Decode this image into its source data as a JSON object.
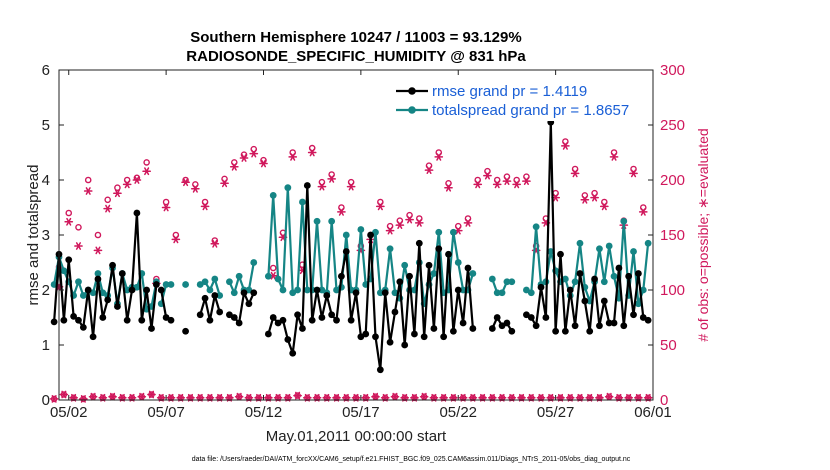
{
  "chart_data": {
    "type": "line",
    "title": "Southern Hemisphere 10247 / 11003 = 93.129%",
    "subtitle": "RADIOSONDE_SPECIFIC_HUMIDITY @ 831 hPa",
    "xlabel": "May.01,2011 00:00:00 start",
    "ylabel": "rmse and totalspread",
    "ylabel_right": "# of obs: o=possible; ∗=evaluated",
    "footer": "data file: /Users/raeder/DAI/ATM_forcXX/CAM6_setup/f.e21.FHIST_BGC.f09_025.CAM6assim.011/Diags_NTrS_2011-05/obs_diag_output.nc",
    "x_unit": "days since May.01,2011 00:00",
    "xlim": [
      0.5,
      31.0
    ],
    "ylim": [
      0,
      6
    ],
    "ylim_right": [
      0,
      300
    ],
    "xticks": [
      1,
      6,
      11,
      16,
      21,
      26,
      31
    ],
    "xtick_labels": [
      "05/02",
      "05/07",
      "05/12",
      "05/17",
      "05/22",
      "05/27",
      "06/01"
    ],
    "yticks": [
      0,
      1,
      2,
      3,
      4,
      5,
      6
    ],
    "yticks_right": [
      0,
      50,
      100,
      150,
      200,
      250,
      300
    ],
    "grid": false,
    "legend_position": "top-right",
    "colors": {
      "rmse": "#000000",
      "spread": "#158585",
      "counts": "#d0185c"
    },
    "series": [
      {
        "name": "rmse grand pr = 1.4119",
        "axis": "left",
        "segments": [
          {
            "x": [
              0.25,
              0.5,
              0.75,
              1.0,
              1.25,
              1.5,
              1.75,
              2.0,
              2.25,
              2.5,
              2.75,
              3.0,
              3.25,
              3.5,
              3.75,
              4.0,
              4.25,
              4.5,
              4.75,
              5.0,
              5.25,
              5.5
            ],
            "y": [
              1.42,
              2.65,
              1.45,
              2.55,
              1.52,
              1.45,
              1.32,
              2.0,
              1.15,
              2.2,
              1.5,
              1.82,
              2.45,
              1.7,
              2.3,
              1.45,
              2.0,
              3.4,
              1.45,
              2.0,
              1.3,
              2.1
            ]
          },
          {
            "x": [
              5.75,
              6.0,
              6.25
            ],
            "y": [
              2.0,
              1.5,
              1.45
            ]
          },
          {
            "x": [
              7.0
            ],
            "y": [
              1.25
            ]
          },
          {
            "x": [
              7.75,
              8.0,
              8.25,
              8.5,
              8.75
            ],
            "y": [
              1.55,
              1.85,
              1.45,
              1.9,
              1.6
            ]
          },
          {
            "x": [
              9.25,
              9.5,
              9.75,
              10.0,
              10.25,
              10.5
            ],
            "y": [
              1.55,
              1.5,
              1.4,
              1.95,
              1.75,
              1.95
            ]
          },
          {
            "x": [
              11.25,
              11.5,
              11.75,
              12.0,
              12.25,
              12.5,
              12.75,
              13.0,
              13.25,
              13.5,
              13.75,
              14.0,
              14.25,
              14.5,
              14.75,
              15.0,
              15.25,
              15.5,
              15.75,
              16.0,
              16.25,
              16.5,
              16.75,
              17.0,
              17.25,
              17.5,
              17.75,
              18.0,
              18.25,
              18.5,
              18.75,
              19.0,
              19.25,
              19.5,
              19.75,
              20.0,
              20.25,
              20.5,
              20.75,
              21.0,
              21.25,
              21.5,
              21.75
            ],
            "y": [
              1.2,
              1.5,
              1.4,
              1.45,
              1.1,
              0.85,
              1.55,
              1.3,
              3.9,
              1.45,
              2.0,
              1.5,
              1.9,
              1.55,
              1.45,
              2.25,
              2.7,
              1.45,
              1.95,
              1.15,
              1.2,
              3.0,
              1.15,
              0.55,
              1.95,
              1.05,
              1.6,
              2.15,
              1.0,
              2.25,
              1.2,
              2.85,
              1.15,
              2.45,
              1.3,
              2.75,
              1.15,
              2.65,
              1.25,
              2.0,
              1.4,
              2.4,
              1.3
            ]
          },
          {
            "x": [
              22.75,
              23.0,
              23.25,
              23.5,
              23.75
            ],
            "y": [
              1.3,
              1.5,
              1.35,
              1.4,
              1.25
            ]
          },
          {
            "x": [
              24.5,
              24.75,
              25.0,
              25.25,
              25.5,
              25.75,
              26.0,
              26.25,
              26.5,
              26.75,
              27.0,
              27.25,
              27.5,
              27.75,
              28.0,
              28.25,
              28.5,
              28.75,
              29.0,
              29.25,
              29.5,
              29.75,
              30.0,
              30.25,
              30.5,
              30.75
            ],
            "y": [
              1.55,
              1.5,
              1.35,
              2.05,
              1.5,
              5.05,
              1.25,
              2.65,
              1.25,
              2.0,
              1.35,
              2.3,
              1.8,
              1.25,
              2.2,
              1.35,
              1.8,
              1.4,
              1.4,
              2.4,
              1.35,
              2.25,
              1.55,
              2.3,
              1.5,
              1.45
            ]
          }
        ]
      },
      {
        "name": "totalspread grand pr = 1.8657",
        "axis": "left",
        "segments": [
          {
            "x": [
              0.25,
              0.5,
              0.75,
              1.0,
              1.25,
              1.5,
              1.75,
              2.0,
              2.25,
              2.5,
              2.75,
              3.0,
              3.25,
              3.5,
              3.75,
              4.0,
              4.25,
              4.5,
              4.75,
              5.0,
              5.25,
              5.5
            ],
            "y": [
              2.1,
              2.6,
              2.35,
              2.15,
              1.9,
              2.15,
              1.9,
              2.0,
              1.95,
              2.3,
              1.95,
              1.9,
              2.4,
              1.75,
              2.3,
              2.0,
              2.05,
              2.05,
              2.3,
              1.65,
              1.7,
              2.15
            ]
          },
          {
            "x": [
              5.75,
              6.0,
              6.25
            ],
            "y": [
              1.75,
              2.1,
              2.1
            ]
          },
          {
            "x": [
              7.0
            ],
            "y": [
              2.1
            ]
          },
          {
            "x": [
              7.75,
              8.0,
              8.25,
              8.5,
              8.75
            ],
            "y": [
              2.1,
              2.15,
              2.0,
              2.2,
              1.9
            ]
          },
          {
            "x": [
              9.25,
              9.5,
              9.75,
              10.0,
              10.25,
              10.5
            ],
            "y": [
              2.15,
              1.95,
              2.25,
              2.0,
              2.0,
              2.5
            ]
          },
          {
            "x": [
              11.25,
              11.5,
              11.75,
              12.0,
              12.25,
              12.5,
              12.75,
              13.0,
              13.25,
              13.5,
              13.75,
              14.0,
              14.25,
              14.5,
              14.75,
              15.0,
              15.25,
              15.5,
              15.75,
              16.0,
              16.25,
              16.5,
              16.75,
              17.0,
              17.25,
              17.5,
              17.75,
              18.0,
              18.25,
              18.5,
              18.75,
              19.0,
              19.25,
              19.5,
              19.75,
              20.0,
              20.25,
              20.5,
              20.75,
              21.0,
              21.25,
              21.5,
              21.75
            ],
            "y": [
              2.25,
              3.72,
              2.2,
              2.0,
              3.86,
              1.95,
              2.0,
              3.6,
              2.0,
              2.0,
              3.25,
              2.0,
              1.95,
              3.25,
              2.0,
              2.05,
              3.0,
              2.0,
              2.0,
              3.1,
              2.1,
              2.2,
              3.05,
              1.95,
              2.0,
              2.75,
              1.95,
              1.85,
              2.45,
              2.0,
              2.0,
              2.5,
              1.75,
              2.1,
              2.3,
              3.05,
              1.95,
              2.0,
              3.05,
              2.5,
              2.0,
              2.0,
              2.3
            ]
          },
          {
            "x": [
              22.75,
              23.0,
              23.25,
              23.5,
              23.75
            ],
            "y": [
              2.2,
              1.95,
              1.95,
              2.15,
              2.15
            ]
          },
          {
            "x": [
              24.5,
              24.75,
              25.0,
              25.25,
              25.5,
              25.75,
              26.0,
              26.25,
              26.5,
              26.75,
              27.0,
              27.25,
              27.5,
              27.75,
              28.0,
              28.25,
              28.5,
              28.75,
              29.0,
              29.25,
              29.5,
              29.75,
              30.0,
              30.25,
              30.5,
              30.75
            ],
            "y": [
              2.0,
              1.95,
              3.15,
              2.1,
              2.15,
              2.7,
              2.35,
              2.15,
              2.2,
              1.9,
              2.15,
              2.85,
              2.05,
              1.8,
              2.15,
              2.75,
              2.15,
              2.8,
              2.25,
              1.85,
              3.25,
              1.9,
              2.7,
              1.75,
              2.0,
              2.85
            ]
          }
        ]
      }
    ],
    "obs_counts": {
      "axis": "right",
      "x": [
        0.25,
        0.5,
        0.75,
        1.0,
        1.25,
        1.5,
        1.75,
        2.0,
        2.25,
        2.5,
        2.75,
        3.0,
        3.25,
        3.5,
        3.75,
        4.0,
        4.25,
        4.5,
        4.75,
        5.0,
        5.25,
        5.5,
        5.75,
        6.0,
        6.25,
        6.5,
        6.75,
        7.0,
        7.25,
        7.5,
        7.75,
        8.0,
        8.25,
        8.5,
        8.75,
        9.0,
        9.25,
        9.5,
        9.75,
        10.0,
        10.25,
        10.5,
        10.75,
        11.0,
        11.25,
        11.5,
        11.75,
        12.0,
        12.25,
        12.5,
        12.75,
        13.0,
        13.25,
        13.5,
        13.75,
        14.0,
        14.25,
        14.5,
        14.75,
        15.0,
        15.25,
        15.5,
        15.75,
        16.0,
        16.25,
        16.5,
        16.75,
        17.0,
        17.25,
        17.5,
        17.75,
        18.0,
        18.25,
        18.5,
        18.75,
        19.0,
        19.25,
        19.5,
        19.75,
        20.0,
        20.25,
        20.5,
        20.75,
        21.0,
        21.25,
        21.5,
        21.75,
        22.0,
        22.25,
        22.5,
        22.75,
        23.0,
        23.25,
        23.5,
        23.75,
        24.0,
        24.25,
        24.5,
        24.75,
        25.0,
        25.25,
        25.5,
        25.75,
        26.0,
        26.25,
        26.5,
        26.75,
        27.0,
        27.25,
        27.5,
        27.75,
        28.0,
        28.25,
        28.5,
        28.75,
        29.0,
        29.25,
        29.5,
        29.75,
        30.0,
        30.25,
        30.5,
        30.75
      ],
      "possible": [
        1.0,
        121,
        5,
        170,
        2,
        157,
        1,
        200,
        3,
        150,
        2,
        182,
        3,
        193,
        2,
        200,
        2,
        202,
        3,
        216,
        5,
        110,
        2,
        180,
        2,
        150,
        2,
        200,
        2,
        196,
        2,
        180,
        2,
        145,
        2,
        201,
        2,
        216,
        3,
        223,
        2,
        228,
        2,
        218,
        2,
        120,
        2,
        152,
        2,
        225,
        4,
        123,
        2,
        229,
        2,
        198,
        2,
        205,
        2,
        175,
        2,
        198,
        2,
        140,
        2,
        150,
        3,
        180,
        2,
        158,
        3,
        163,
        2,
        168,
        2,
        165,
        3,
        213,
        2,
        225,
        2,
        197,
        2,
        158,
        2,
        165,
        2,
        200,
        2,
        208,
        2,
        200,
        2,
        203,
        2,
        200,
        2,
        203,
        2,
        140,
        2,
        165,
        2,
        188,
        2,
        235,
        2,
        210,
        2,
        186,
        2,
        188,
        2,
        180,
        3,
        225,
        2,
        163,
        2,
        210,
        2,
        175,
        2
      ],
      "evaluated": [
        1.0,
        103,
        5,
        162,
        2,
        140,
        1,
        190,
        3,
        136,
        2,
        174,
        3,
        188,
        2,
        196,
        2,
        200,
        3,
        208,
        5,
        106,
        2,
        175,
        2,
        146,
        2,
        198,
        2,
        192,
        2,
        176,
        2,
        142,
        2,
        197,
        2,
        212,
        3,
        220,
        2,
        224,
        2,
        215,
        2,
        113,
        2,
        148,
        2,
        221,
        4,
        118,
        2,
        225,
        2,
        194,
        2,
        201,
        2,
        171,
        2,
        194,
        2,
        136,
        2,
        146,
        3,
        176,
        2,
        154,
        3,
        159,
        2,
        164,
        2,
        161,
        3,
        209,
        2,
        221,
        2,
        193,
        2,
        154,
        2,
        161,
        2,
        196,
        2,
        204,
        2,
        196,
        2,
        199,
        2,
        196,
        2,
        199,
        2,
        136,
        2,
        161,
        2,
        184,
        2,
        231,
        2,
        206,
        2,
        182,
        2,
        184,
        2,
        176,
        3,
        221,
        2,
        159,
        2,
        206,
        2,
        171,
        2
      ]
    }
  }
}
